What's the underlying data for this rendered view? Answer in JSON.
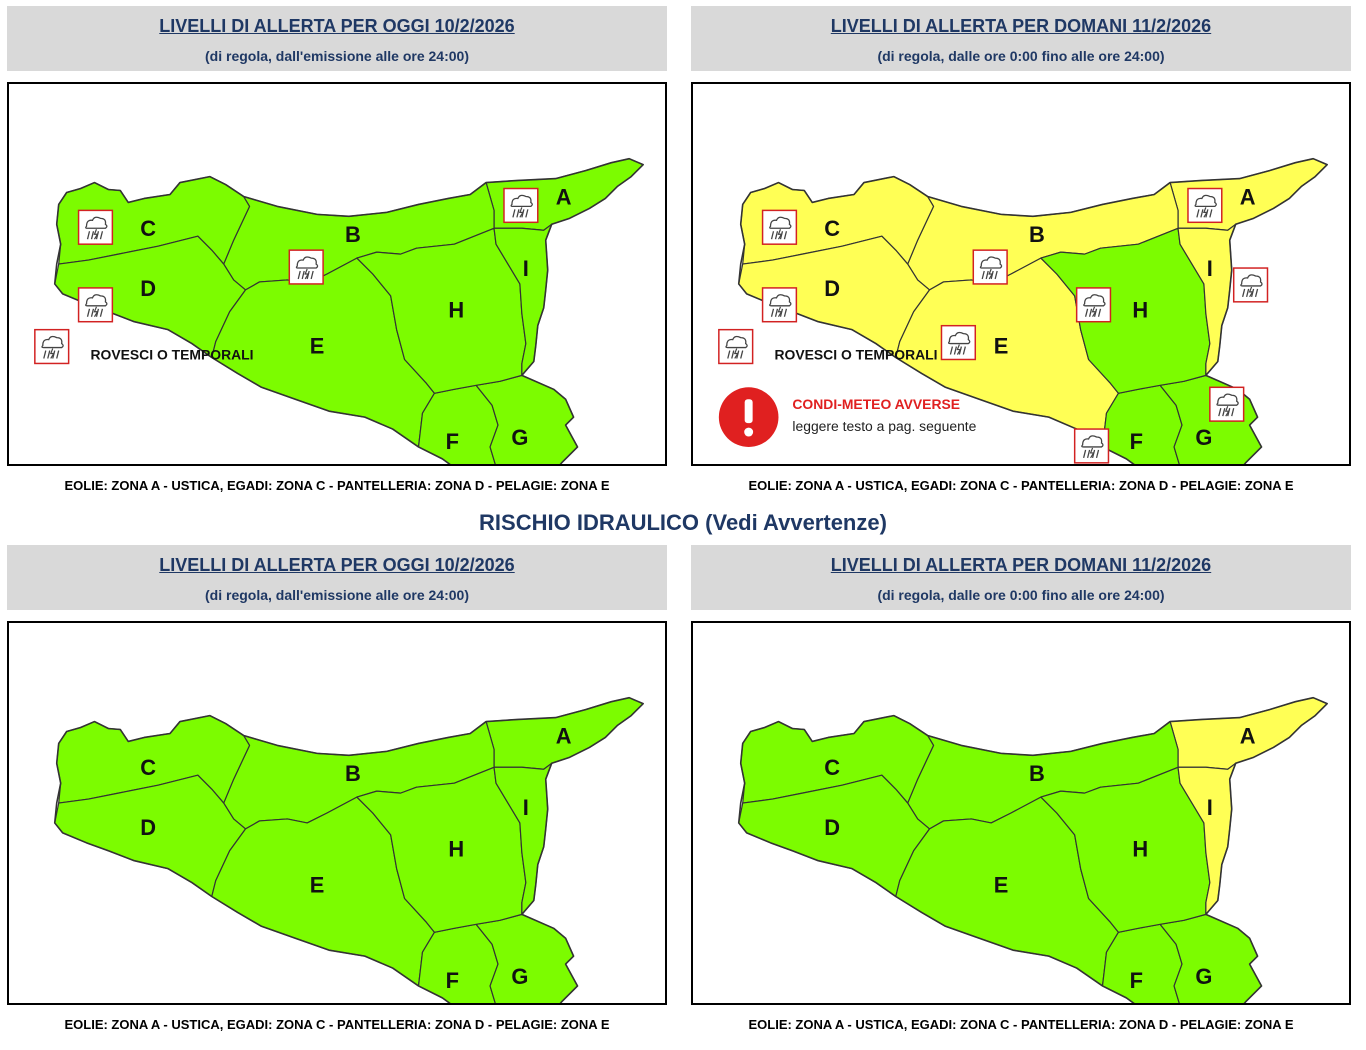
{
  "colors": {
    "green": "#7cfc00",
    "yellow": "#ffff55",
    "border": "#333333",
    "icon_frame": "#d22222",
    "condi_red": "#e02020"
  },
  "section_title": "RISCHIO IDRAULICO (Vedi Avvertenze)",
  "footer": "EOLIE: ZONA A - USTICA, EGADI: ZONA C - PANTELLERIA: ZONA D - PELAGIE: ZONA E",
  "legend": {
    "storm_label": "ROVESCI O TEMPORALI",
    "storm_icon": "storm-cloud-icon",
    "condi_title": "CONDI-METEO AVVERSE",
    "condi_text": "leggere testo a pag. seguente",
    "condi_icon": "exclamation-icon"
  },
  "zone_labels": [
    "A",
    "B",
    "C",
    "D",
    "E",
    "F",
    "G",
    "H",
    "I"
  ],
  "panels": {
    "tl": {
      "title": "LIVELLI DI ALLERTA PER OGGI 10/2/2026",
      "subtitle": "(di regola, dall'emissione alle ore 24:00)",
      "yellow_zones": [],
      "storm_zones": [
        "A",
        "B",
        "C",
        "D"
      ],
      "show_storm_legend": true,
      "show_condi": false
    },
    "tr": {
      "title": "LIVELLI DI ALLERTA PER DOMANI 11/2/2026",
      "subtitle": "(di regola, dalle ore 0:00 fino alle ore 24:00)",
      "yellow_zones": [
        "A",
        "B",
        "C",
        "D",
        "E",
        "I"
      ],
      "storm_zones": [
        "A",
        "B",
        "C",
        "D",
        "E",
        "F",
        "G",
        "H",
        "I"
      ],
      "show_storm_legend": true,
      "show_condi": true
    },
    "bl": {
      "title": "LIVELLI DI ALLERTA PER OGGI 10/2/2026",
      "subtitle": "(di regola, dall'emissione alle ore 24:00)",
      "yellow_zones": [],
      "storm_zones": [],
      "show_storm_legend": false,
      "show_condi": false
    },
    "br": {
      "title": "LIVELLI DI ALLERTA PER DOMANI 11/2/2026",
      "subtitle": "(di regola, dalle ore 0:00 fino alle ore 24:00)",
      "yellow_zones": [
        "A",
        "I"
      ],
      "storm_zones": [],
      "show_storm_legend": false,
      "show_condi": false
    }
  }
}
